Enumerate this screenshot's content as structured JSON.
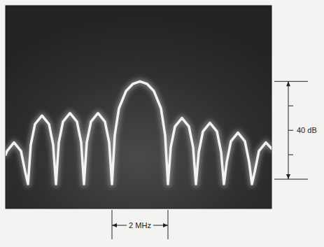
{
  "chart_data": {
    "type": "line",
    "x": [
      -4.8,
      -4.75,
      -4.5,
      -4.25,
      -4.1,
      -4,
      -3.9,
      -3.75,
      -3.5,
      -3.25,
      -3.1,
      -3,
      -2.9,
      -2.75,
      -2.5,
      -2.25,
      -2.1,
      -2,
      -1.9,
      -1.75,
      -1.5,
      -1.25,
      -1.1,
      -1,
      -0.9,
      -0.75,
      -0.5,
      -0.25,
      0,
      0.25,
      0.5,
      0.75,
      0.9,
      1,
      1.1,
      1.25,
      1.5,
      1.75,
      1.9,
      2,
      2.1,
      2.25,
      2.5,
      2.75,
      2.9,
      3,
      3.1,
      3.25,
      3.5,
      3.75,
      3.9,
      4,
      4.1,
      4.25,
      4.5,
      4.7
    ],
    "series": [
      {
        "color": "#f2f2f2",
        "values": [
          -30,
          -28.5,
          -25,
          -28.5,
          -37,
          -42,
          -26,
          -17.5,
          -14,
          -17.5,
          -26,
          -42,
          -25,
          -16.5,
          -13,
          -16.5,
          -25,
          -42,
          -25,
          -16.5,
          -13,
          -16.5,
          -25,
          -42,
          -22,
          -11,
          -4,
          -1,
          0,
          -1,
          -4,
          -11,
          -22,
          -42,
          -27,
          -18.5,
          -15,
          -18.5,
          -27,
          -42,
          -29,
          -20.5,
          -17,
          -20.5,
          -29,
          -42,
          -33,
          -24.5,
          -21,
          -24.5,
          -33,
          -42,
          -37,
          -28.5,
          -25,
          -27.5
        ]
      }
    ],
    "xlim": [
      -4.8,
      4.7
    ],
    "ylim": [
      -52,
      31
    ],
    "yticks": [
      -10,
      -20,
      -30
    ],
    "tick_labels": false,
    "grid": false,
    "annotations": [
      {
        "text": "40 dB",
        "y": [
          0,
          -40
        ]
      },
      {
        "text": "2 MHz",
        "x": [
          -1,
          1
        ]
      }
    ]
  }
}
